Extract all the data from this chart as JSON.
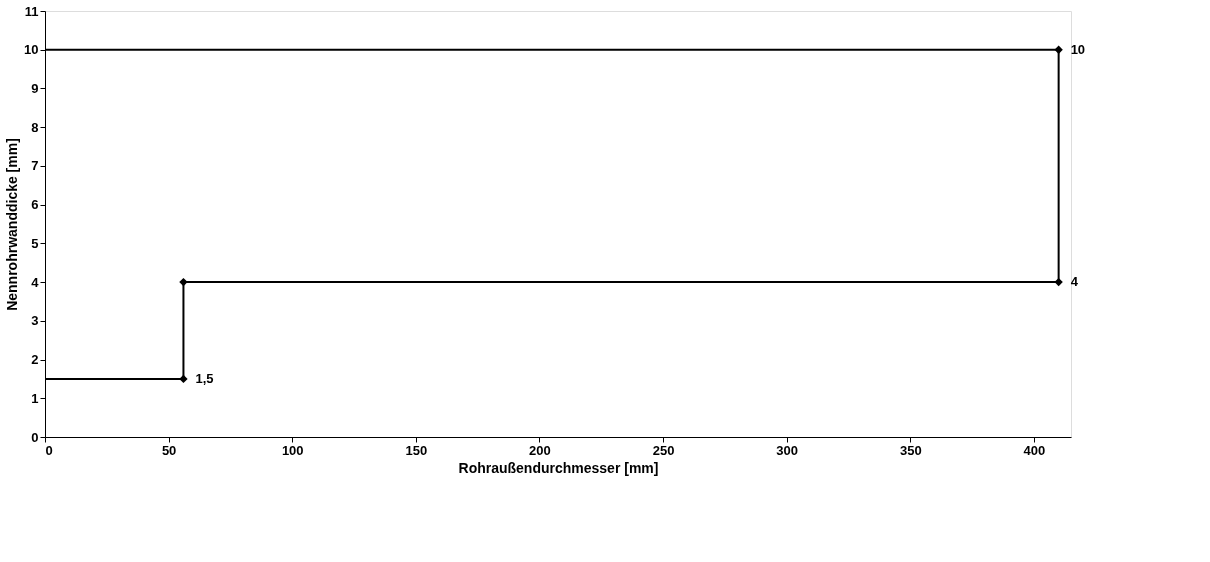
{
  "chart_data": {
    "type": "line",
    "xlabel": "Rohraußendurchmesser [mm]",
    "ylabel": "Nennrohrwanddicke [mm]",
    "xlim": [
      0,
      415
    ],
    "xticks": [
      0,
      50,
      100,
      150,
      200,
      250,
      300,
      350,
      400
    ],
    "ylim": [
      0,
      11
    ],
    "yticks": [
      0,
      1,
      2,
      3,
      4,
      5,
      6,
      7,
      8,
      9,
      10,
      11
    ],
    "grid": false,
    "series": [
      {
        "color": "#000000",
        "marker": "none",
        "x": [
          0,
          56,
          56,
          410,
          410,
          0
        ],
        "values": [
          1.5,
          1.5,
          4,
          4,
          10,
          10
        ]
      },
      {
        "type": "scatter",
        "color": "#000000",
        "marker": "diamond",
        "x": [
          56,
          56,
          410,
          410
        ],
        "values": [
          1.5,
          4,
          4,
          10
        ],
        "value_labels": [
          "1,5",
          null,
          "4",
          "10"
        ]
      }
    ]
  }
}
